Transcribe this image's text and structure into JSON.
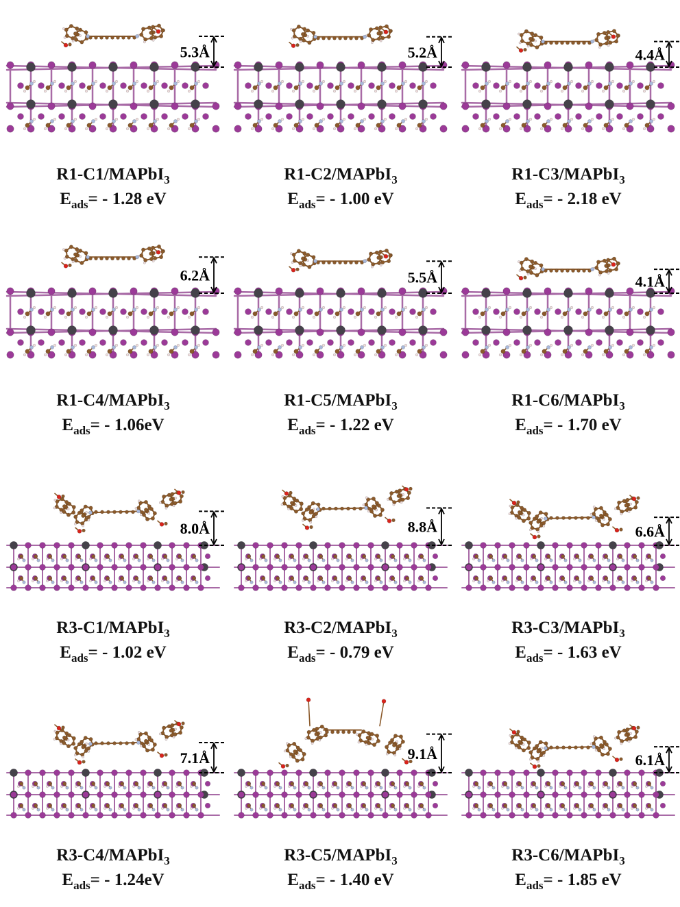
{
  "colors": {
    "iodine": "#9b3a98",
    "lead": "#45424a",
    "bond": "#a86aa6",
    "carbon": "#8b5a2b",
    "oxygen": "#d9231b",
    "nitrogen": "#a9b9dc",
    "hydrogen": "#f1dede",
    "guide": "#000000"
  },
  "panels": [
    {
      "system": "R1-C1/MAPbI",
      "subscript": "3",
      "energy_label": "E",
      "energy_subscript": "ads",
      "energy_value": "= \u0002- 1.28 eV",
      "distance": "5.3Å"
    },
    {
      "system": "R1-C2/MAPbI",
      "subscript": "3",
      "energy_label": "E",
      "energy_subscript": "ads",
      "energy_value": "= - 1.00 eV",
      "distance": "5.2Å"
    },
    {
      "system": "R1-C3/MAPbI",
      "subscript": "3",
      "energy_label": "E",
      "energy_subscript": "ads",
      "energy_value": "= - 2.18 eV",
      "distance": "4.4Å"
    },
    {
      "system": "R1-C4/MAPbI",
      "subscript": "3",
      "energy_label": "E",
      "energy_subscript": "ads",
      "energy_value": "= - 1.06eV",
      "distance": "6.2Å"
    },
    {
      "system": "R1-C5/MAPbI",
      "subscript": "3",
      "energy_label": "E",
      "energy_subscript": "ads",
      "energy_value": "= - 1.22 eV",
      "distance": "5.5Å"
    },
    {
      "system": "R1-C6/MAPbI",
      "subscript": "3",
      "energy_label": "E",
      "energy_subscript": "ads",
      "energy_value": "= - 1.70 eV",
      "distance": "4.1Å"
    },
    {
      "system": "R3-C1/MAPbI",
      "subscript": "3",
      "energy_label": "E",
      "energy_subscript": "ads",
      "energy_value": "= - 1.02 eV",
      "distance": "8.0Å"
    },
    {
      "system": "R3-C2/MAPbI",
      "subscript": "3",
      "energy_label": "E",
      "energy_subscript": "ads",
      "energy_value": "= - 0.79 eV",
      "distance": "8.8Å"
    },
    {
      "system": "R3-C3/MAPbI",
      "subscript": "3",
      "energy_label": "E",
      "energy_subscript": "ads",
      "energy_value": "= - 1.63 eV",
      "distance": "6.6Å"
    },
    {
      "system": "R3-C4/MAPbI",
      "subscript": "3",
      "energy_label": "E",
      "energy_subscript": "ads",
      "energy_value": "= - 1.24eV",
      "distance": "7.1Å"
    },
    {
      "system": "R3-C5/MAPbI",
      "subscript": "3",
      "energy_label": "E",
      "energy_subscript": "ads",
      "energy_value": "= - 1.40 eV",
      "distance": "9.1Å"
    },
    {
      "system": "R3-C6/MAPbI",
      "subscript": "3",
      "energy_label": "E",
      "energy_subscript": "ads",
      "energy_value": "= - 1.85 eV",
      "distance": "6.1Å"
    }
  ]
}
